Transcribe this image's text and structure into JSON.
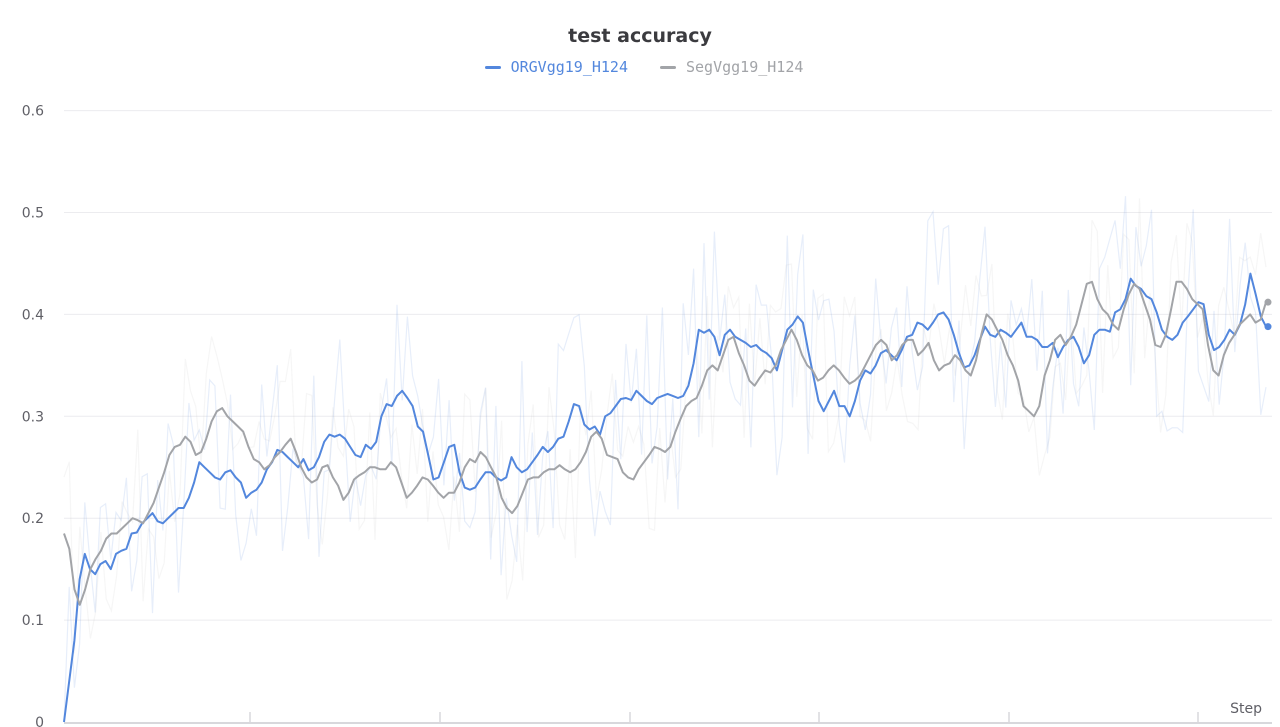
{
  "chart_data": {
    "type": "line",
    "title": "test accuracy",
    "xlabel": "Step",
    "ylabel": "",
    "ylim": [
      0,
      0.62
    ],
    "yticks": [
      "0",
      "0.1",
      "0.2",
      "0.3",
      "0.4",
      "0.5",
      "0.6"
    ],
    "ytick_values": [
      0,
      0.1,
      0.2,
      0.3,
      0.4,
      0.5,
      0.6
    ],
    "legend_position": "top-center",
    "grid": true,
    "series": [
      {
        "name": "ORGVgg19_H124",
        "color": "#5387dd",
        "values": [
          0.0,
          0.04,
          0.08,
          0.14,
          0.165,
          0.15,
          0.145,
          0.155,
          0.158,
          0.15,
          0.165,
          0.168,
          0.17,
          0.185,
          0.186,
          0.195,
          0.2,
          0.205,
          0.197,
          0.195,
          0.2,
          0.205,
          0.21,
          0.21,
          0.22,
          0.235,
          0.255,
          0.25,
          0.245,
          0.24,
          0.238,
          0.245,
          0.247,
          0.24,
          0.235,
          0.22,
          0.225,
          0.228,
          0.235,
          0.248,
          0.255,
          0.267,
          0.265,
          0.26,
          0.255,
          0.25,
          0.258,
          0.247,
          0.25,
          0.26,
          0.275,
          0.282,
          0.28,
          0.282,
          0.278,
          0.27,
          0.262,
          0.26,
          0.272,
          0.268,
          0.275,
          0.3,
          0.312,
          0.31,
          0.32,
          0.325,
          0.318,
          0.31,
          0.29,
          0.285,
          0.262,
          0.238,
          0.24,
          0.255,
          0.27,
          0.272,
          0.245,
          0.23,
          0.228,
          0.23,
          0.238,
          0.245,
          0.245,
          0.24,
          0.237,
          0.24,
          0.26,
          0.25,
          0.245,
          0.248,
          0.255,
          0.262,
          0.27,
          0.265,
          0.27,
          0.278,
          0.28,
          0.295,
          0.312,
          0.31,
          0.292,
          0.287,
          0.29,
          0.282,
          0.3,
          0.303,
          0.31,
          0.317,
          0.318,
          0.316,
          0.325,
          0.32,
          0.315,
          0.312,
          0.318,
          0.32,
          0.322,
          0.32,
          0.318,
          0.32,
          0.33,
          0.352,
          0.385,
          0.382,
          0.385,
          0.378,
          0.36,
          0.38,
          0.385,
          0.378,
          0.375,
          0.372,
          0.368,
          0.37,
          0.365,
          0.362,
          0.357,
          0.345,
          0.365,
          0.385,
          0.39,
          0.398,
          0.392,
          0.365,
          0.34,
          0.315,
          0.305,
          0.315,
          0.325,
          0.31,
          0.31,
          0.3,
          0.315,
          0.335,
          0.345,
          0.342,
          0.35,
          0.362,
          0.365,
          0.36,
          0.355,
          0.365,
          0.378,
          0.38,
          0.392,
          0.39,
          0.385,
          0.392,
          0.4,
          0.402,
          0.395,
          0.38,
          0.362,
          0.348,
          0.35,
          0.36,
          0.375,
          0.388,
          0.38,
          0.378,
          0.385,
          0.382,
          0.378,
          0.385,
          0.392,
          0.378,
          0.378,
          0.375,
          0.368,
          0.368,
          0.372,
          0.358,
          0.368,
          0.375,
          0.378,
          0.368,
          0.352,
          0.36,
          0.38,
          0.385,
          0.385,
          0.383,
          0.402,
          0.405,
          0.415,
          0.435,
          0.428,
          0.425,
          0.418,
          0.415,
          0.402,
          0.385,
          0.378,
          0.375,
          0.38,
          0.392,
          0.398,
          0.405,
          0.412,
          0.41,
          0.38,
          0.365,
          0.368,
          0.375,
          0.385,
          0.38,
          0.39,
          0.41,
          0.44,
          0.42,
          0.398,
          0.388
        ]
      },
      {
        "name": "SegVgg19_H124",
        "color": "#a2a4a8",
        "values": [
          0.185,
          0.17,
          0.13,
          0.115,
          0.13,
          0.15,
          0.16,
          0.168,
          0.18,
          0.185,
          0.185,
          0.19,
          0.195,
          0.2,
          0.198,
          0.195,
          0.205,
          0.215,
          0.23,
          0.245,
          0.262,
          0.27,
          0.272,
          0.28,
          0.275,
          0.262,
          0.265,
          0.278,
          0.295,
          0.305,
          0.308,
          0.3,
          0.295,
          0.29,
          0.285,
          0.27,
          0.258,
          0.255,
          0.248,
          0.252,
          0.26,
          0.265,
          0.272,
          0.278,
          0.265,
          0.25,
          0.24,
          0.235,
          0.238,
          0.25,
          0.252,
          0.24,
          0.232,
          0.218,
          0.225,
          0.238,
          0.242,
          0.245,
          0.25,
          0.25,
          0.248,
          0.248,
          0.255,
          0.25,
          0.235,
          0.22,
          0.225,
          0.232,
          0.24,
          0.238,
          0.232,
          0.225,
          0.22,
          0.225,
          0.225,
          0.235,
          0.25,
          0.258,
          0.255,
          0.265,
          0.26,
          0.25,
          0.24,
          0.22,
          0.21,
          0.205,
          0.212,
          0.225,
          0.238,
          0.24,
          0.24,
          0.245,
          0.248,
          0.248,
          0.252,
          0.248,
          0.245,
          0.248,
          0.255,
          0.265,
          0.28,
          0.285,
          0.278,
          0.262,
          0.26,
          0.258,
          0.245,
          0.24,
          0.238,
          0.248,
          0.255,
          0.262,
          0.27,
          0.268,
          0.265,
          0.27,
          0.285,
          0.298,
          0.31,
          0.315,
          0.318,
          0.33,
          0.345,
          0.35,
          0.345,
          0.36,
          0.375,
          0.378,
          0.362,
          0.35,
          0.335,
          0.33,
          0.338,
          0.345,
          0.343,
          0.35,
          0.365,
          0.375,
          0.385,
          0.375,
          0.36,
          0.35,
          0.345,
          0.335,
          0.338,
          0.345,
          0.35,
          0.345,
          0.338,
          0.332,
          0.335,
          0.34,
          0.35,
          0.36,
          0.37,
          0.375,
          0.37,
          0.355,
          0.36,
          0.37,
          0.375,
          0.375,
          0.36,
          0.365,
          0.372,
          0.355,
          0.345,
          0.35,
          0.352,
          0.36,
          0.355,
          0.345,
          0.34,
          0.355,
          0.38,
          0.4,
          0.395,
          0.385,
          0.375,
          0.36,
          0.35,
          0.335,
          0.31,
          0.305,
          0.3,
          0.31,
          0.34,
          0.355,
          0.375,
          0.38,
          0.37,
          0.378,
          0.39,
          0.41,
          0.43,
          0.432,
          0.415,
          0.405,
          0.4,
          0.39,
          0.385,
          0.405,
          0.42,
          0.43,
          0.425,
          0.41,
          0.395,
          0.37,
          0.368,
          0.38,
          0.405,
          0.432,
          0.432,
          0.425,
          0.415,
          0.41,
          0.405,
          0.37,
          0.345,
          0.34,
          0.36,
          0.372,
          0.38,
          0.39,
          0.395,
          0.4,
          0.392,
          0.395,
          0.412
        ]
      }
    ]
  }
}
